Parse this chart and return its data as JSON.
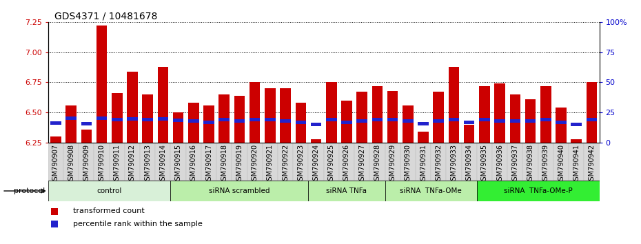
{
  "title": "GDS4371 / 10481678",
  "categories": [
    "GSM790907",
    "GSM790908",
    "GSM790909",
    "GSM790910",
    "GSM790911",
    "GSM790912",
    "GSM790913",
    "GSM790914",
    "GSM790915",
    "GSM790916",
    "GSM790917",
    "GSM790918",
    "GSM790919",
    "GSM790920",
    "GSM790921",
    "GSM790922",
    "GSM790923",
    "GSM790924",
    "GSM790925",
    "GSM790926",
    "GSM790927",
    "GSM790928",
    "GSM790929",
    "GSM790930",
    "GSM790931",
    "GSM790932",
    "GSM790933",
    "GSM790934",
    "GSM790935",
    "GSM790936",
    "GSM790937",
    "GSM790938",
    "GSM790939",
    "GSM790940",
    "GSM790941",
    "GSM790942"
  ],
  "transformed_count": [
    6.3,
    6.56,
    6.36,
    7.22,
    6.66,
    6.84,
    6.65,
    6.88,
    6.5,
    6.58,
    6.56,
    6.65,
    6.64,
    6.75,
    6.7,
    6.7,
    6.58,
    6.28,
    6.75,
    6.6,
    6.67,
    6.72,
    6.68,
    6.56,
    6.34,
    6.67,
    6.88,
    6.4,
    6.72,
    6.74,
    6.65,
    6.61,
    6.72,
    6.54,
    6.28,
    6.75
  ],
  "percentile_rank_val": [
    6.415,
    6.455,
    6.405,
    6.455,
    6.44,
    6.448,
    6.44,
    6.448,
    6.435,
    6.43,
    6.42,
    6.44,
    6.43,
    6.44,
    6.44,
    6.43,
    6.42,
    6.4,
    6.44,
    6.42,
    6.43,
    6.44,
    6.44,
    6.43,
    6.41,
    6.43,
    6.44,
    6.42,
    6.44,
    6.43,
    6.43,
    6.43,
    6.44,
    6.42,
    6.4,
    6.44
  ],
  "ylim_left": [
    6.25,
    7.25
  ],
  "yticks_left": [
    6.25,
    6.5,
    6.75,
    7.0,
    7.25
  ],
  "yticks_right_pct": [
    0,
    25,
    50,
    75,
    100
  ],
  "bar_color": "#cc0000",
  "dot_color": "#2222cc",
  "bar_width": 0.7,
  "title_fontsize": 10,
  "tick_fontsize": 7,
  "groups": [
    {
      "label": "control",
      "start": 0,
      "end": 7,
      "color": "#d8f0d8"
    },
    {
      "label": "siRNA scrambled",
      "start": 8,
      "end": 16,
      "color": "#bbeeaa"
    },
    {
      "label": "siRNA TNFa",
      "start": 17,
      "end": 21,
      "color": "#bbeeaa"
    },
    {
      "label": "siRNA  TNFa-OMe",
      "start": 22,
      "end": 27,
      "color": "#bbeeaa"
    },
    {
      "label": "siRNA  TNFa-OMe-P",
      "start": 28,
      "end": 35,
      "color": "#33ee33"
    }
  ],
  "protocol_label": "protocol",
  "legend_items": [
    {
      "label": "transformed count",
      "color": "#cc0000"
    },
    {
      "label": "percentile rank within the sample",
      "color": "#2222cc"
    }
  ]
}
